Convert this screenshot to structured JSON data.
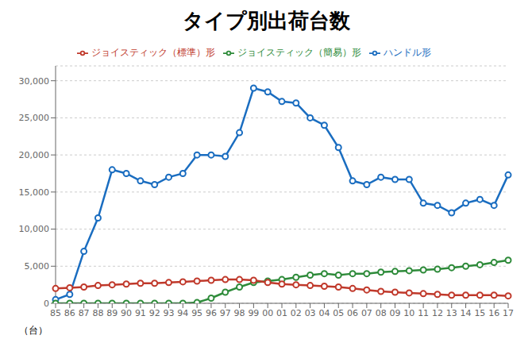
{
  "chart_data": {
    "type": "line",
    "title": "タイプ別出荷台数",
    "ylabel": "（台）",
    "categories": [
      "85",
      "86",
      "87",
      "88",
      "89",
      "90",
      "91",
      "92",
      "93",
      "94",
      "95",
      "96",
      "97",
      "98",
      "99",
      "00",
      "01",
      "02",
      "03",
      "04",
      "05",
      "06",
      "07",
      "08",
      "09",
      "10",
      "11",
      "12",
      "13",
      "14",
      "15",
      "16",
      "17"
    ],
    "series": [
      {
        "name": "ハンドル形",
        "color": "#1a6dc0",
        "marker": "circle",
        "line_style": "solid",
        "values": [
          500,
          1200,
          7000,
          11500,
          18000,
          17500,
          16500,
          16000,
          17000,
          17500,
          20000,
          20000,
          19800,
          23000,
          29000,
          28500,
          27200,
          27000,
          25000,
          24000,
          21000,
          16500,
          16000,
          17000,
          16700,
          16700,
          13500,
          13200,
          12200,
          13500,
          14000,
          13200,
          17300
        ]
      },
      {
        "name": "ジョイスティック（簡易）形",
        "color": "#2e8b3a",
        "marker": "circle",
        "line_style": "solid",
        "values": [
          0,
          0,
          0,
          0,
          0,
          0,
          0,
          0,
          0,
          0,
          100,
          700,
          1500,
          2200,
          2800,
          3000,
          3200,
          3500,
          3800,
          4000,
          3800,
          4000,
          4000,
          4200,
          4300,
          4400,
          4500,
          4600,
          4800,
          5000,
          5200,
          5500,
          5800
        ]
      },
      {
        "name": "ジョイスティック（標準）形",
        "color": "#c0392b",
        "marker": "circle",
        "line_style": "solid",
        "values": [
          2000,
          2100,
          2200,
          2400,
          2500,
          2600,
          2700,
          2700,
          2800,
          2900,
          3000,
          3100,
          3200,
          3200,
          3100,
          2800,
          2600,
          2500,
          2400,
          2300,
          2200,
          2000,
          1800,
          1600,
          1500,
          1400,
          1300,
          1200,
          1100,
          1100,
          1100,
          1100,
          1000
        ]
      }
    ],
    "ylim": [
      0,
      32000
    ],
    "yticks": [
      0,
      {
        "value": 5000,
        "label": "5,000"
      },
      {
        "value": 10000,
        "label": "10,000"
      },
      {
        "value": 15000,
        "label": "15,000"
      },
      {
        "value": 20000,
        "label": "20,000"
      },
      {
        "value": 25000,
        "label": "25,000"
      },
      {
        "value": 30000,
        "label": "30,000"
      }
    ],
    "grid": true,
    "legend": "top"
  }
}
